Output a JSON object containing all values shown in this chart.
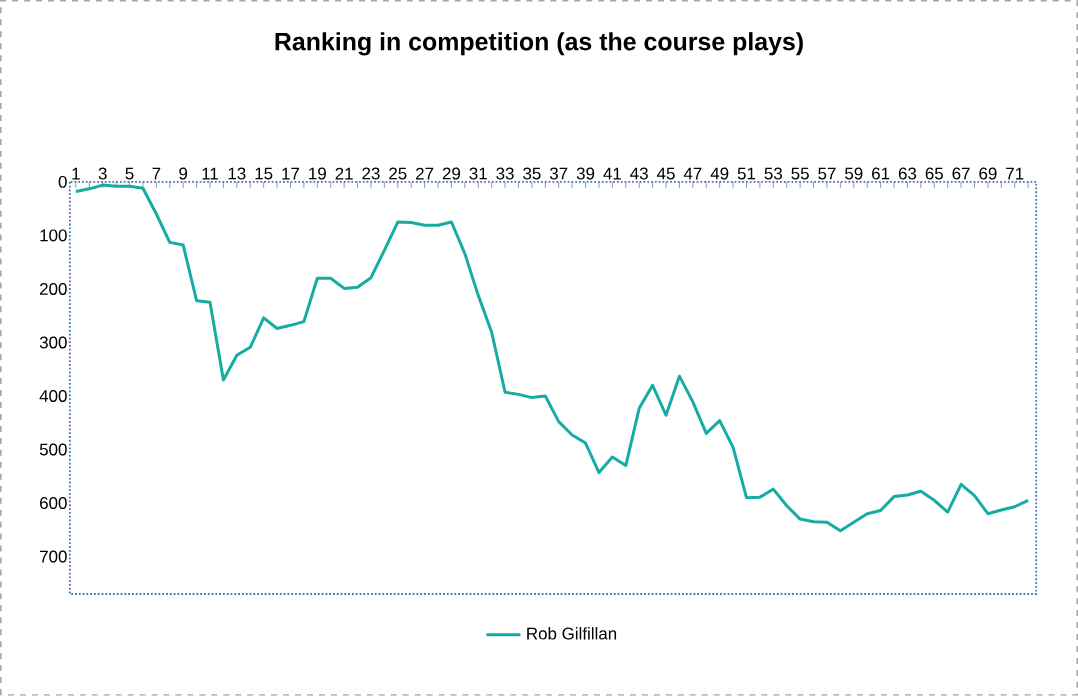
{
  "chart_data": {
    "type": "line",
    "title": "Ranking in competition (as the course plays)",
    "categories": [
      "1",
      null,
      "3",
      null,
      "5",
      null,
      "7",
      null,
      "9",
      null,
      "11",
      null,
      "13",
      null,
      "15",
      null,
      "17",
      null,
      "19",
      null,
      "21",
      null,
      "23",
      null,
      "25",
      null,
      "27",
      null,
      "29",
      null,
      "31",
      null,
      "33",
      null,
      "35",
      null,
      "37",
      null,
      "39",
      null,
      "41",
      null,
      "43",
      null,
      "45",
      null,
      "47",
      null,
      "49",
      null,
      "51",
      null,
      "53",
      null,
      "55",
      null,
      "57",
      null,
      "59",
      null,
      "61",
      null,
      "63",
      null,
      "65",
      null,
      "67",
      null,
      "69",
      null,
      "71",
      null
    ],
    "series": [
      {
        "name": "Rob Gilfillan",
        "color": "#17aca3",
        "values": [
          18,
          13,
          6,
          8,
          8,
          12,
          60,
          113,
          118,
          222,
          225,
          370,
          324,
          309,
          254,
          274,
          268,
          261,
          180,
          180,
          199,
          197,
          179,
          128,
          75,
          76,
          81,
          81,
          75,
          134,
          212,
          281,
          393,
          397,
          403,
          400,
          448,
          473,
          488,
          543,
          514,
          530,
          423,
          380,
          436,
          363,
          411,
          470,
          446,
          496,
          590,
          589,
          574,
          605,
          630,
          635,
          636,
          652,
          636,
          620,
          614,
          588,
          585,
          578,
          595,
          617,
          565,
          586,
          620,
          613,
          607,
          595
        ]
      }
    ],
    "ylim": [
      770,
      0
    ],
    "yticks": [
      0,
      100,
      200,
      300,
      400,
      500,
      600,
      700
    ],
    "legend": "bottom",
    "marker": "none",
    "line_style": "solid",
    "grid": false
  }
}
